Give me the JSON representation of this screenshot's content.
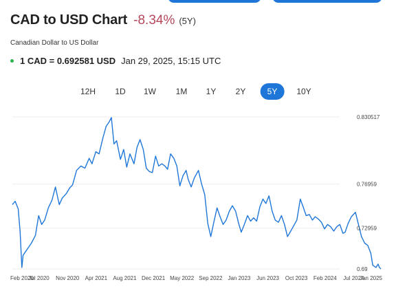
{
  "header": {
    "title": "CAD to USD Chart",
    "change": "-8.34%",
    "period": "(5Y)",
    "subtitle": "Canadian Dollar to US Dollar"
  },
  "rate": {
    "conversion": "1 CAD = 0.692581 USD",
    "timestamp": "Jan 29, 2025, 15:15 UTC"
  },
  "range_tabs": [
    {
      "label": "12H",
      "active": false
    },
    {
      "label": "1D",
      "active": false
    },
    {
      "label": "1W",
      "active": false
    },
    {
      "label": "1M",
      "active": false
    },
    {
      "label": "1Y",
      "active": false
    },
    {
      "label": "2Y",
      "active": false
    },
    {
      "label": "5Y",
      "active": true
    },
    {
      "label": "10Y",
      "active": false
    }
  ],
  "colors": {
    "accent": "#1f76d9",
    "line": "#1f76d9",
    "negative": "#b5475a",
    "live": "#2bb24c"
  },
  "chart_data": {
    "type": "line",
    "x_ticks": [
      "Feb 2020",
      "Jul 2020",
      "Nov 2020",
      "Apr 2021",
      "Aug 2021",
      "Dec 2021",
      "May 2022",
      "Sep 2022",
      "Jan 2023",
      "Jun 2023",
      "Oct 2023",
      "Feb 2024",
      "Jul 2024",
      "Jan 2025"
    ],
    "y_ticks": [
      0.830517,
      0.76959,
      0.72959,
      0.6926
    ],
    "y_tick_labels": [
      "0.830517",
      "0.76959",
      "0.72959",
      "0.69"
    ],
    "ylim": [
      0.6926,
      0.830517
    ],
    "series": [
      {
        "points": [
          [
            "2020-02-01",
            0.751
          ],
          [
            "2020-02-15",
            0.754
          ],
          [
            "2020-03-01",
            0.747
          ],
          [
            "2020-03-10",
            0.727
          ],
          [
            "2020-03-19",
            0.694
          ],
          [
            "2020-03-25",
            0.705
          ],
          [
            "2020-04-05",
            0.708
          ],
          [
            "2020-04-20",
            0.712
          ],
          [
            "2020-05-05",
            0.716
          ],
          [
            "2020-05-25",
            0.723
          ],
          [
            "2020-06-10",
            0.741
          ],
          [
            "2020-06-25",
            0.733
          ],
          [
            "2020-07-10",
            0.737
          ],
          [
            "2020-07-28",
            0.748
          ],
          [
            "2020-08-15",
            0.755
          ],
          [
            "2020-09-01",
            0.767
          ],
          [
            "2020-09-20",
            0.751
          ],
          [
            "2020-10-05",
            0.757
          ],
          [
            "2020-10-25",
            0.761
          ],
          [
            "2020-11-10",
            0.766
          ],
          [
            "2020-11-25",
            0.769
          ],
          [
            "2020-12-15",
            0.782
          ],
          [
            "2021-01-05",
            0.786
          ],
          [
            "2021-01-25",
            0.784
          ],
          [
            "2021-02-15",
            0.793
          ],
          [
            "2021-03-01",
            0.788
          ],
          [
            "2021-03-20",
            0.799
          ],
          [
            "2021-04-05",
            0.797
          ],
          [
            "2021-04-25",
            0.812
          ],
          [
            "2021-05-10",
            0.822
          ],
          [
            "2021-05-25",
            0.826
          ],
          [
            "2021-06-05",
            0.83
          ],
          [
            "2021-06-18",
            0.806
          ],
          [
            "2021-07-01",
            0.809
          ],
          [
            "2021-07-20",
            0.792
          ],
          [
            "2021-08-05",
            0.801
          ],
          [
            "2021-08-20",
            0.785
          ],
          [
            "2021-09-05",
            0.797
          ],
          [
            "2021-09-25",
            0.788
          ],
          [
            "2021-10-10",
            0.803
          ],
          [
            "2021-10-25",
            0.81
          ],
          [
            "2021-11-10",
            0.801
          ],
          [
            "2021-11-25",
            0.784
          ],
          [
            "2021-12-10",
            0.781
          ],
          [
            "2021-12-25",
            0.78
          ],
          [
            "2022-01-10",
            0.795
          ],
          [
            "2022-01-25",
            0.786
          ],
          [
            "2022-02-10",
            0.788
          ],
          [
            "2022-02-25",
            0.786
          ],
          [
            "2022-03-10",
            0.783
          ],
          [
            "2022-03-25",
            0.797
          ],
          [
            "2022-04-10",
            0.793
          ],
          [
            "2022-04-25",
            0.786
          ],
          [
            "2022-05-10",
            0.768
          ],
          [
            "2022-05-25",
            0.777
          ],
          [
            "2022-06-10",
            0.782
          ],
          [
            "2022-06-20",
            0.774
          ],
          [
            "2022-07-05",
            0.767
          ],
          [
            "2022-07-20",
            0.775
          ],
          [
            "2022-08-10",
            0.782
          ],
          [
            "2022-08-25",
            0.77
          ],
          [
            "2022-09-10",
            0.76
          ],
          [
            "2022-09-25",
            0.734
          ],
          [
            "2022-10-10",
            0.722
          ],
          [
            "2022-10-25",
            0.735
          ],
          [
            "2022-11-10",
            0.748
          ],
          [
            "2022-11-25",
            0.74
          ],
          [
            "2022-12-10",
            0.733
          ],
          [
            "2022-12-25",
            0.737
          ],
          [
            "2023-01-10",
            0.745
          ],
          [
            "2023-01-25",
            0.75
          ],
          [
            "2023-02-10",
            0.745
          ],
          [
            "2023-02-25",
            0.734
          ],
          [
            "2023-03-10",
            0.726
          ],
          [
            "2023-03-25",
            0.733
          ],
          [
            "2023-04-10",
            0.741
          ],
          [
            "2023-04-25",
            0.736
          ],
          [
            "2023-05-10",
            0.739
          ],
          [
            "2023-05-25",
            0.736
          ],
          [
            "2023-06-10",
            0.749
          ],
          [
            "2023-06-25",
            0.756
          ],
          [
            "2023-07-10",
            0.752
          ],
          [
            "2023-07-25",
            0.759
          ],
          [
            "2023-08-10",
            0.745
          ],
          [
            "2023-08-25",
            0.737
          ],
          [
            "2023-09-10",
            0.735
          ],
          [
            "2023-09-25",
            0.741
          ],
          [
            "2023-10-10",
            0.733
          ],
          [
            "2023-10-25",
            0.722
          ],
          [
            "2023-11-10",
            0.727
          ],
          [
            "2023-11-25",
            0.732
          ],
          [
            "2023-12-10",
            0.737
          ],
          [
            "2023-12-27",
            0.756
          ],
          [
            "2024-01-10",
            0.749
          ],
          [
            "2024-01-25",
            0.741
          ],
          [
            "2024-02-10",
            0.742
          ],
          [
            "2024-02-25",
            0.737
          ],
          [
            "2024-03-10",
            0.74
          ],
          [
            "2024-03-25",
            0.738
          ],
          [
            "2024-04-10",
            0.735
          ],
          [
            "2024-04-25",
            0.729
          ],
          [
            "2024-05-10",
            0.733
          ],
          [
            "2024-05-25",
            0.731
          ],
          [
            "2024-06-10",
            0.727
          ],
          [
            "2024-06-25",
            0.731
          ],
          [
            "2024-07-10",
            0.733
          ],
          [
            "2024-07-25",
            0.725
          ],
          [
            "2024-08-05",
            0.726
          ],
          [
            "2024-08-20",
            0.734
          ],
          [
            "2024-09-05",
            0.74
          ],
          [
            "2024-09-25",
            0.744
          ],
          [
            "2024-10-10",
            0.733
          ],
          [
            "2024-10-25",
            0.722
          ],
          [
            "2024-11-10",
            0.716
          ],
          [
            "2024-11-25",
            0.714
          ],
          [
            "2024-12-10",
            0.707
          ],
          [
            "2024-12-20",
            0.696
          ],
          [
            "2025-01-05",
            0.694
          ],
          [
            "2025-01-15",
            0.697
          ],
          [
            "2025-01-22",
            0.694
          ],
          [
            "2025-01-29",
            0.6926
          ]
        ]
      }
    ]
  }
}
